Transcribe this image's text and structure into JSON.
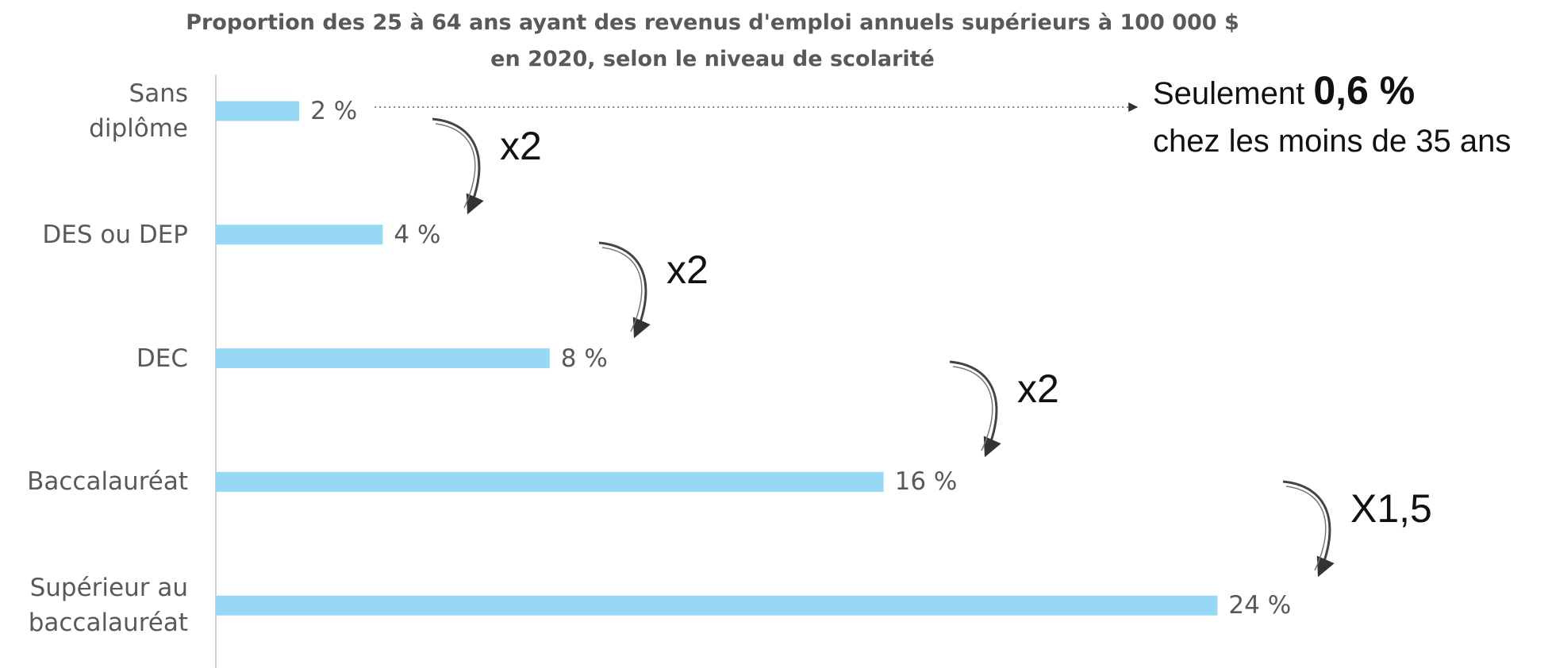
{
  "chart_data": {
    "type": "bar",
    "orientation": "horizontal",
    "title": "Proportion des 25 à 64 ans ayant des revenus d'emploi annuels supérieurs à 100 000 $\nen 2020, selon le niveau de scolarité",
    "categories": [
      "Sans\ndiplôme",
      "DES ou DEP",
      "DEC",
      "Baccalauréat",
      "Supérieur au\nbaccalauréat"
    ],
    "values": [
      2,
      4,
      8,
      16,
      24
    ],
    "value_labels": [
      "2 %",
      "4 %",
      "8 %",
      "16 %",
      "24 %"
    ],
    "color": "#97d9f5",
    "xlim": [
      0,
      30
    ],
    "multipliers": [
      "x2",
      "x2",
      "x2",
      "X1,5"
    ],
    "annotation": {
      "before": "Seulement",
      "emphasis": "0,6 %",
      "after": "chez les moins de 35 ans"
    }
  }
}
